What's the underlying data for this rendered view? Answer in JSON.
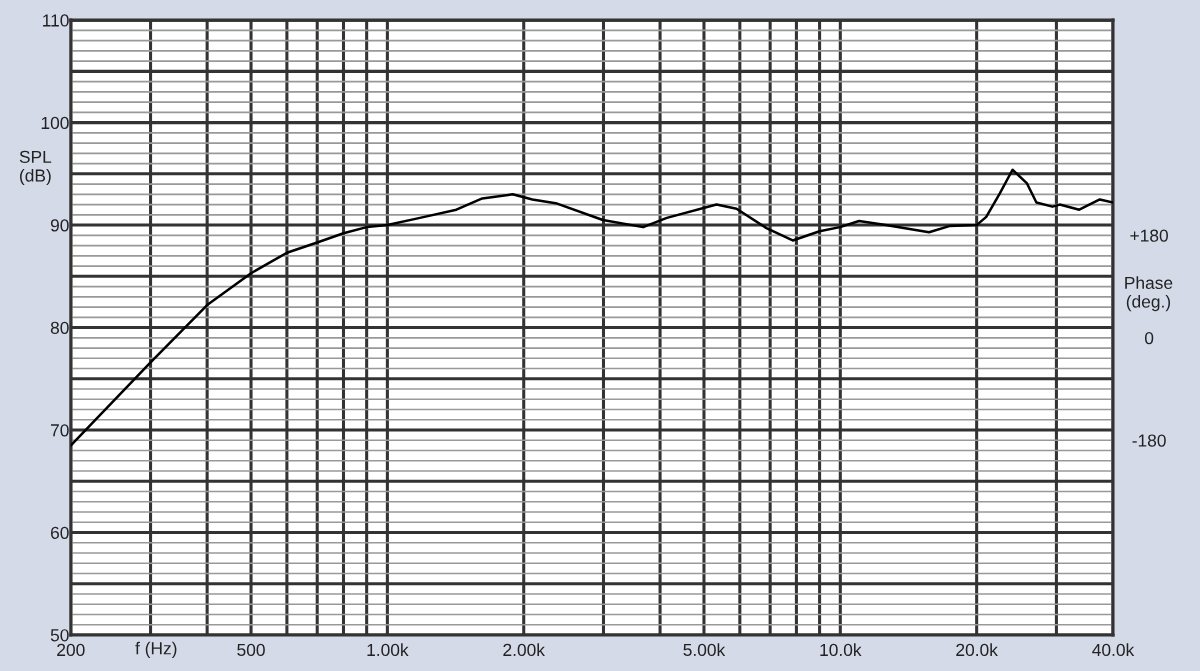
{
  "chart_data": {
    "type": "line",
    "xlabel": "f (Hz)",
    "ylabel": "SPL\n(dB)",
    "y2label": "Phase\n(deg.)",
    "log": "x",
    "x": [
      200,
      300,
      400,
      500,
      600,
      700,
      800,
      900,
      1000,
      1180,
      1420,
      1620,
      1890,
      2090,
      2370,
      2990,
      3670,
      4140,
      5330,
      5900,
      6870,
      7850,
      9000,
      9980,
      11000,
      12600,
      15700,
      17400,
      20000,
      21000,
      22500,
      24000,
      25800,
      27100,
      29400,
      30500,
      33700,
      37400,
      40000
    ],
    "series": [
      {
        "color": "#000000",
        "values": [
          68.5,
          76.6,
          82.2,
          85.3,
          87.3,
          88.3,
          89.2,
          89.8,
          90.0,
          90.7,
          91.5,
          92.6,
          93.0,
          92.5,
          92.1,
          90.5,
          89.8,
          90.7,
          92.0,
          91.6,
          89.7,
          88.5,
          89.4,
          89.8,
          90.4,
          90.0,
          89.3,
          89.9,
          90.0,
          90.8,
          93.1,
          95.4,
          94.1,
          92.2,
          91.8,
          92.0,
          91.5,
          92.5,
          92.2
        ]
      }
    ],
    "xlim": [
      200,
      40000
    ],
    "xticks": [
      200,
      {
        "value": 300,
        "label": null
      },
      {
        "value": 400,
        "label": null
      },
      500,
      {
        "value": 600,
        "label": null
      },
      {
        "value": 700,
        "label": null
      },
      {
        "value": 800,
        "label": null
      },
      {
        "value": 900,
        "label": null
      },
      {
        "value": 1000,
        "label": "1.00k"
      },
      {
        "value": 2000,
        "label": "2.00k"
      },
      {
        "value": 3000,
        "label": null
      },
      {
        "value": 4000,
        "label": null
      },
      {
        "value": 5000,
        "label": "5.00k"
      },
      {
        "value": 6000,
        "label": null
      },
      {
        "value": 7000,
        "label": null
      },
      {
        "value": 8000,
        "label": null
      },
      {
        "value": 9000,
        "label": null
      },
      {
        "value": 10000,
        "label": "10.0k"
      },
      {
        "value": 20000,
        "label": "20.0k"
      },
      {
        "value": 30000,
        "label": null
      },
      {
        "value": 40000,
        "label": "40.0k"
      }
    ],
    "ylim": [
      50,
      110
    ],
    "yticks": [
      50,
      {
        "value": 51,
        "label": null
      },
      {
        "value": 52,
        "label": null
      },
      {
        "value": 53,
        "label": null
      },
      {
        "value": 54,
        "label": null
      },
      {
        "value": 55,
        "label": null
      },
      {
        "value": 56,
        "label": null
      },
      {
        "value": 57,
        "label": null
      },
      {
        "value": 58,
        "label": null
      },
      {
        "value": 59,
        "label": null
      },
      60,
      {
        "value": 61,
        "label": null
      },
      {
        "value": 62,
        "label": null
      },
      {
        "value": 63,
        "label": null
      },
      {
        "value": 64,
        "label": null
      },
      {
        "value": 65,
        "label": null
      },
      {
        "value": 66,
        "label": null
      },
      {
        "value": 67,
        "label": null
      },
      {
        "value": 68,
        "label": null
      },
      {
        "value": 69,
        "label": null
      },
      70,
      {
        "value": 71,
        "label": null
      },
      {
        "value": 72,
        "label": null
      },
      {
        "value": 73,
        "label": null
      },
      {
        "value": 74,
        "label": null
      },
      {
        "value": 75,
        "label": null
      },
      {
        "value": 76,
        "label": null
      },
      {
        "value": 77,
        "label": null
      },
      {
        "value": 78,
        "label": null
      },
      {
        "value": 79,
        "label": null
      },
      80,
      {
        "value": 81,
        "label": null
      },
      {
        "value": 82,
        "label": null
      },
      {
        "value": 83,
        "label": null
      },
      {
        "value": 84,
        "label": null
      },
      {
        "value": 85,
        "label": null
      },
      {
        "value": 86,
        "label": null
      },
      {
        "value": 87,
        "label": null
      },
      {
        "value": 88,
        "label": null
      },
      {
        "value": 89,
        "label": null
      },
      90,
      {
        "value": 91,
        "label": null
      },
      {
        "value": 92,
        "label": null
      },
      {
        "value": 93,
        "label": null
      },
      {
        "value": 94,
        "label": null
      },
      {
        "value": 95,
        "label": null
      },
      {
        "value": 96,
        "label": null
      },
      {
        "value": 97,
        "label": null
      },
      {
        "value": 98,
        "label": null
      },
      {
        "value": 99,
        "label": null
      },
      100,
      {
        "value": 101,
        "label": null
      },
      {
        "value": 102,
        "label": null
      },
      {
        "value": 103,
        "label": null
      },
      {
        "value": 104,
        "label": null
      },
      {
        "value": 105,
        "label": null
      },
      {
        "value": 106,
        "label": null
      },
      {
        "value": 107,
        "label": null
      },
      {
        "value": 108,
        "label": null
      },
      {
        "value": 109,
        "label": null
      },
      110
    ],
    "y2lim": [
      -522,
      558
    ],
    "y2ticks": [
      {
        "value": 180,
        "label": "+180"
      },
      0,
      -180
    ],
    "grid": true,
    "marker": "none",
    "line_style": "solid",
    "legend": false
  }
}
